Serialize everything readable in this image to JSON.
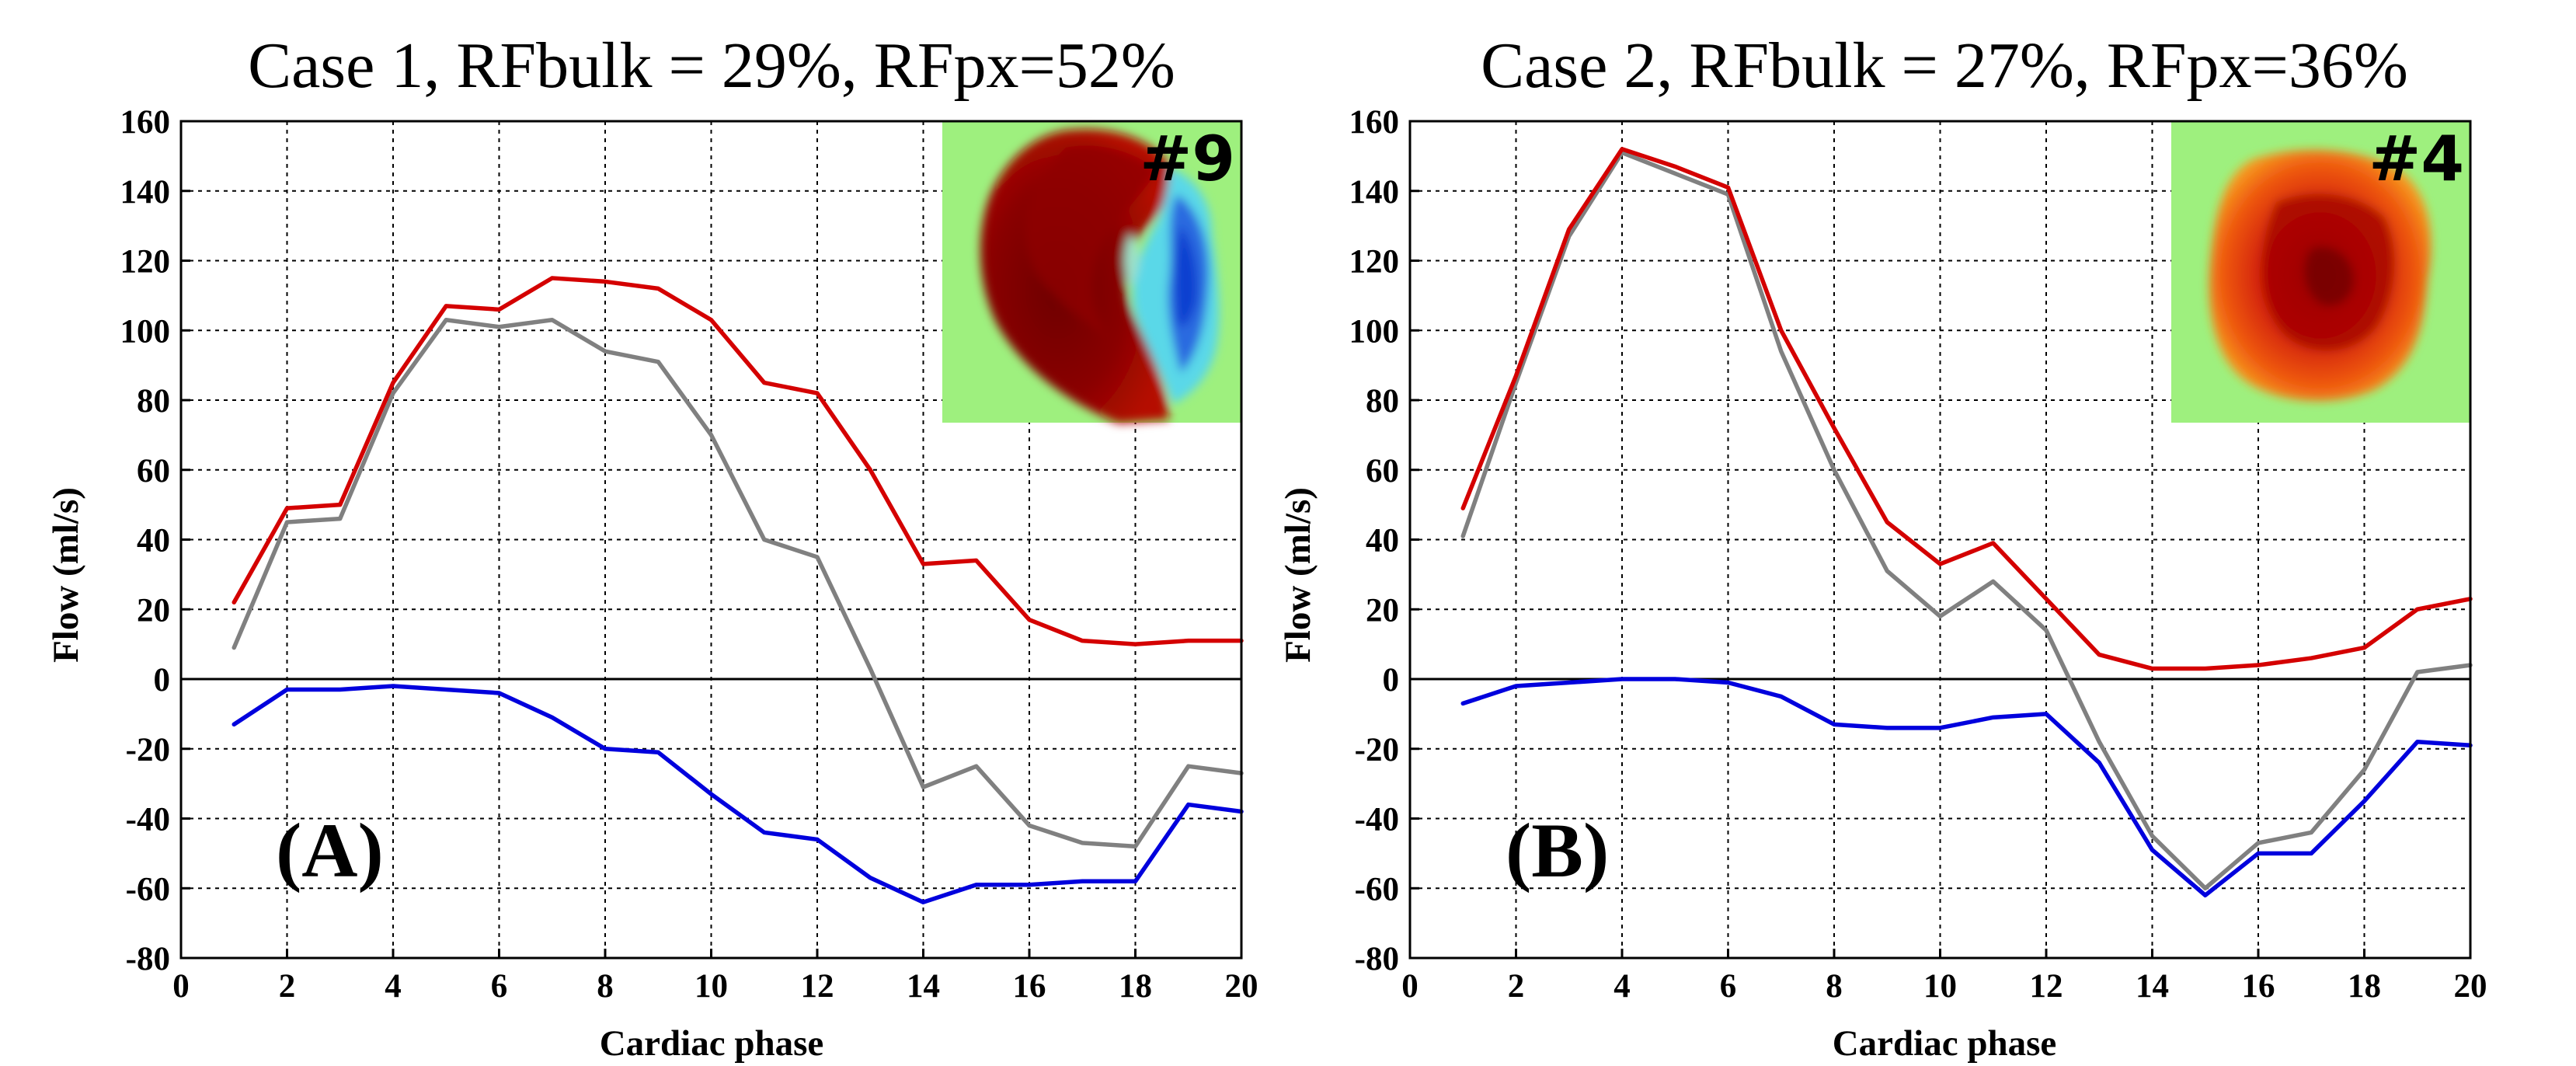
{
  "chart_data": [
    {
      "type": "line",
      "panel_label": "(A)",
      "title": "Case 1,  RFbulk = 29%, RFpx=52%",
      "xlabel": "Cardiac phase",
      "ylabel": "Flow (ml/s)",
      "xlim": [
        0,
        20
      ],
      "ylim": [
        -80,
        160
      ],
      "xticks": [
        0,
        2,
        4,
        6,
        8,
        10,
        12,
        14,
        16,
        18,
        20
      ],
      "yticks": [
        -80,
        -60,
        -40,
        -20,
        0,
        20,
        40,
        60,
        80,
        100,
        120,
        140,
        160
      ],
      "grid": true,
      "inset": {
        "label": "#9",
        "position": "top-right"
      },
      "x": [
        1,
        2,
        3,
        4,
        5,
        6,
        7,
        8,
        9,
        10,
        11,
        12,
        13,
        14,
        15,
        16,
        17,
        18,
        19,
        20
      ],
      "series": [
        {
          "name": "red",
          "color": "#d40000",
          "values": [
            22,
            49,
            50,
            85,
            107,
            106,
            115,
            114,
            112,
            103,
            85,
            82,
            60,
            33,
            34,
            17,
            11,
            10,
            11,
            11
          ]
        },
        {
          "name": "gray",
          "color": "#808080",
          "values": [
            9,
            45,
            46,
            82,
            103,
            101,
            103,
            94,
            91,
            70,
            40,
            35,
            3,
            -31,
            -25,
            -42,
            -47,
            -48,
            -25,
            -27
          ]
        },
        {
          "name": "blue",
          "color": "#0000dd",
          "values": [
            -13,
            -3,
            -3,
            -2,
            -3,
            -4,
            -11,
            -20,
            -21,
            -33,
            -44,
            -46,
            -57,
            -64,
            -59,
            -59,
            -58,
            -58,
            -36,
            -38
          ]
        }
      ]
    },
    {
      "type": "line",
      "panel_label": "(B)",
      "title": "Case 2,  RFbulk = 27%, RFpx=36%",
      "xlabel": "Cardiac phase",
      "ylabel": "Flow (ml/s)",
      "xlim": [
        0,
        20
      ],
      "ylim": [
        -80,
        160
      ],
      "xticks": [
        0,
        2,
        4,
        6,
        8,
        10,
        12,
        14,
        16,
        18,
        20
      ],
      "yticks": [
        -80,
        -60,
        -40,
        -20,
        0,
        20,
        40,
        60,
        80,
        100,
        120,
        140,
        160
      ],
      "grid": true,
      "inset": {
        "label": "#4",
        "position": "top-right"
      },
      "x": [
        1,
        2,
        3,
        4,
        5,
        6,
        7,
        8,
        9,
        10,
        11,
        12,
        13,
        14,
        15,
        16,
        17,
        18,
        19,
        20
      ],
      "series": [
        {
          "name": "red",
          "color": "#d40000",
          "values": [
            49,
            87,
            129,
            152,
            147,
            141,
            100,
            72,
            45,
            33,
            39,
            23,
            7,
            3,
            3,
            4,
            6,
            9,
            20,
            23
          ]
        },
        {
          "name": "gray",
          "color": "#808080",
          "values": [
            41,
            85,
            127,
            151,
            145,
            139,
            94,
            60,
            31,
            18,
            28,
            14,
            -18,
            -45,
            -60,
            -47,
            -44,
            -26,
            2,
            4
          ]
        },
        {
          "name": "blue",
          "color": "#0000dd",
          "values": [
            -7,
            -2,
            -1,
            0,
            0,
            -1,
            -5,
            -13,
            -14,
            -14,
            -11,
            -10,
            -24,
            -49,
            -62,
            -50,
            -50,
            -35,
            -18,
            -19
          ]
        }
      ]
    }
  ]
}
